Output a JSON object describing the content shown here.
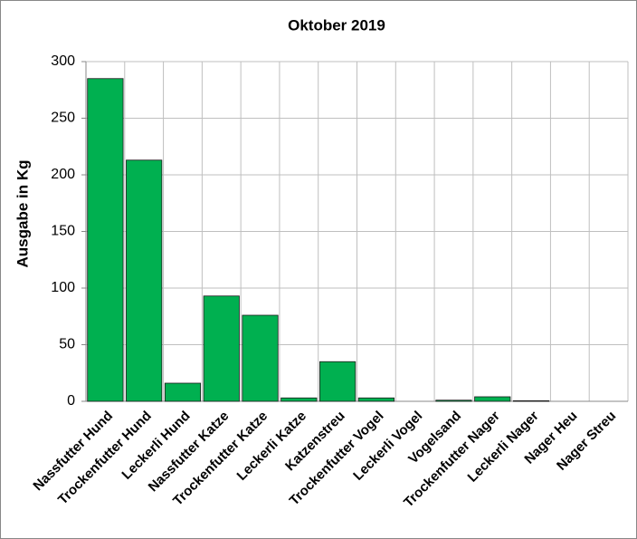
{
  "chart_data": {
    "type": "bar",
    "title": "Oktober 2019",
    "y_label": "Ausgabe in Kg",
    "categories": [
      "Nassfutter Hund",
      "Trockenfutter Hund",
      "Leckerli Hund",
      "Nassfutter Katze",
      "Trockenfutter Katze",
      "Leckerli Katze",
      "Katzenstreu",
      "Trockenfutter Vogel",
      "Leckerli Vogel",
      "Vogelsand",
      "Trockenfutter Nager",
      "Leckerli Nager",
      "Nager Heu",
      "Nager Streu"
    ],
    "values": [
      285,
      213,
      16,
      93,
      76,
      3,
      35,
      3,
      0,
      1,
      4,
      0.5,
      0,
      0
    ],
    "color": "#00b050",
    "ylim": [
      0,
      300
    ],
    "yticks": [
      0,
      50,
      100,
      150,
      200,
      250,
      300
    ],
    "grid": true
  }
}
